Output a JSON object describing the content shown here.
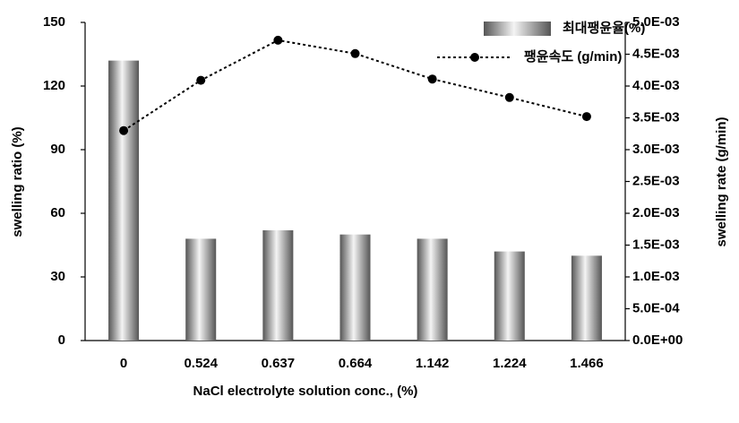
{
  "chart_data": {
    "type": "bar-line",
    "x_label": "NaCl electrolyte solution conc., (%)",
    "y_label": "swelling ratio (%)",
    "y2_label": "swelling rate (g/min)",
    "categories": [
      "0",
      "0.524",
      "0.637",
      "0.664",
      "1.142",
      "1.224",
      "1.466"
    ],
    "series": [
      {
        "name": "최대팽윤율(%)",
        "type": "bar",
        "color": "#555555",
        "values": [
          132,
          48,
          52,
          50,
          48,
          42,
          40
        ]
      },
      {
        "name": "팽윤속도 (g/min)",
        "type": "line",
        "axis": "y2",
        "color": "#000000",
        "values": [
          0.0033,
          0.00409,
          0.00472,
          0.00451,
          0.00411,
          0.00382,
          0.00352
        ]
      }
    ],
    "ylim": [
      0,
      150
    ],
    "yticks": [
      0,
      30,
      60,
      90,
      120,
      150
    ],
    "y2lim": [
      0,
      0.005
    ],
    "y2ticks": [
      {
        "value": 0,
        "label": "0.0E+00"
      },
      {
        "value": 0.0005,
        "label": "5.0E-04"
      },
      {
        "value": 0.001,
        "label": "1.0E-03"
      },
      {
        "value": 0.0015,
        "label": "1.5E-03"
      },
      {
        "value": 0.002,
        "label": "2.0E-03"
      },
      {
        "value": 0.0025,
        "label": "2.5E-03"
      },
      {
        "value": 0.003,
        "label": "3.0E-03"
      },
      {
        "value": 0.0035,
        "label": "3.5E-03"
      },
      {
        "value": 0.004,
        "label": "4.0E-03"
      },
      {
        "value": 0.0045,
        "label": "4.5E-03"
      },
      {
        "value": 0.005,
        "label": "5.0E-03"
      }
    ],
    "grid": false,
    "legend": "upper right"
  }
}
